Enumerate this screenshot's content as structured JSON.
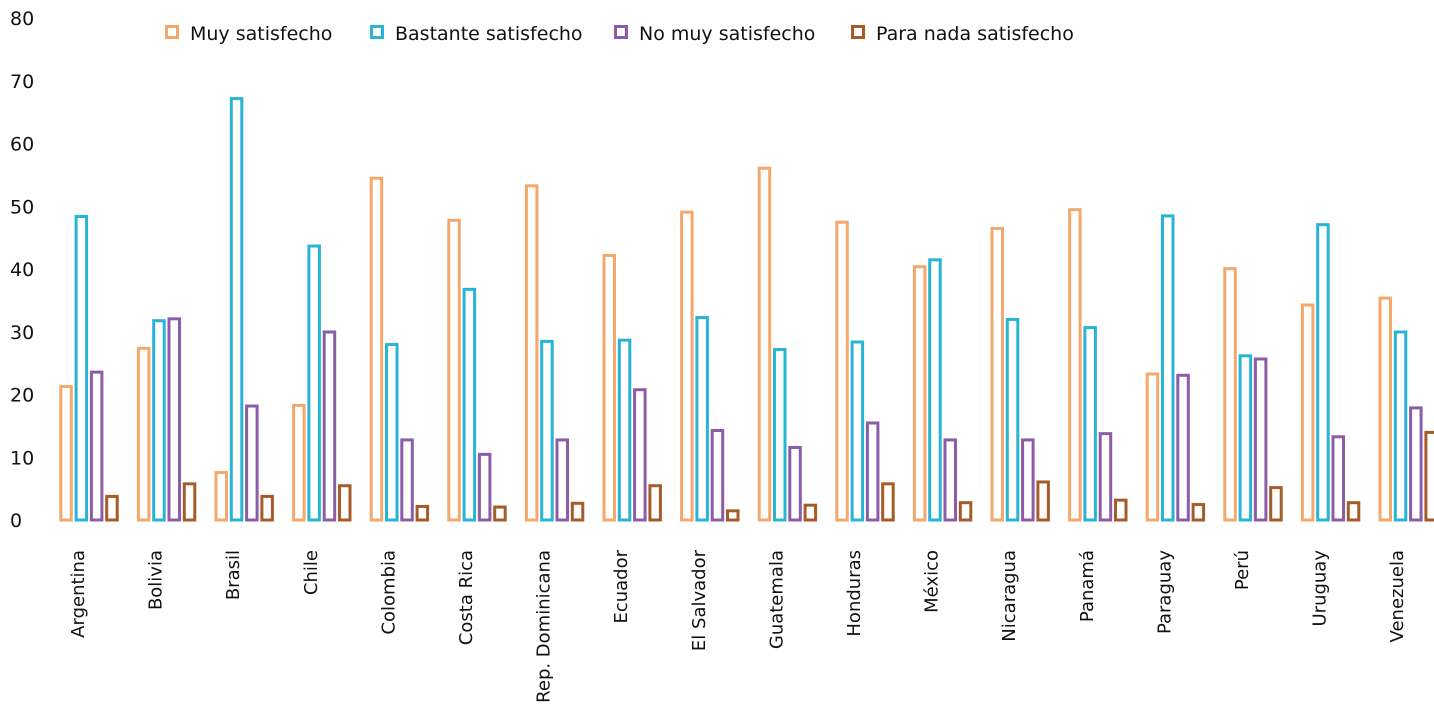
{
  "chart_data": {
    "type": "bar",
    "title": "",
    "xlabel": "",
    "ylabel": "",
    "ylim": [
      0,
      80
    ],
    "yticks": [
      "0",
      "10",
      "20",
      "30",
      "40",
      "50",
      "60",
      "70",
      "80"
    ],
    "grid": false,
    "legend_position": "top",
    "categories": [
      "Argentina",
      "Bolivia",
      "Brasil",
      "Chile",
      "Colombia",
      "Costa Rica",
      "Rep. Dominicana",
      "Ecuador",
      "El Salvador",
      "Guatemala",
      "Honduras",
      "México",
      "Nicaragua",
      "Panamá",
      "Paraguay",
      "Perú",
      "Uruguay",
      "Venezuela"
    ],
    "series": [
      {
        "name": "Muy satisfecho",
        "color": "#f4a86b",
        "values": [
          21.5,
          27.6,
          7.8,
          18.5,
          54.7,
          48,
          53.5,
          42.4,
          49.3,
          56.3,
          47.7,
          40.6,
          46.7,
          49.7,
          23.5,
          40.3,
          34.5,
          35.6
        ]
      },
      {
        "name": "Bastante satisfecho",
        "color": "#28b4d4",
        "values": [
          48.6,
          32,
          67.4,
          43.9,
          28.2,
          37,
          28.7,
          28.9,
          32.5,
          27.4,
          28.6,
          41.7,
          32.2,
          30.9,
          48.7,
          26.4,
          47.3,
          30.2
        ]
      },
      {
        "name": "No muy satisfecho",
        "color": "#8c5ca8",
        "values": [
          23.8,
          32.3,
          18.4,
          30.2,
          13,
          10.7,
          13,
          21,
          14.5,
          11.8,
          15.7,
          13,
          13,
          14,
          23.3,
          25.9,
          13.5,
          18.1
        ]
      },
      {
        "name": "Para nada satisfecho",
        "color": "#a55c28",
        "values": [
          4,
          6,
          4,
          5.7,
          2.4,
          2.3,
          2.9,
          5.7,
          1.7,
          2.6,
          6,
          3,
          6.3,
          3.4,
          2.7,
          5.4,
          3,
          14.2
        ]
      }
    ]
  }
}
